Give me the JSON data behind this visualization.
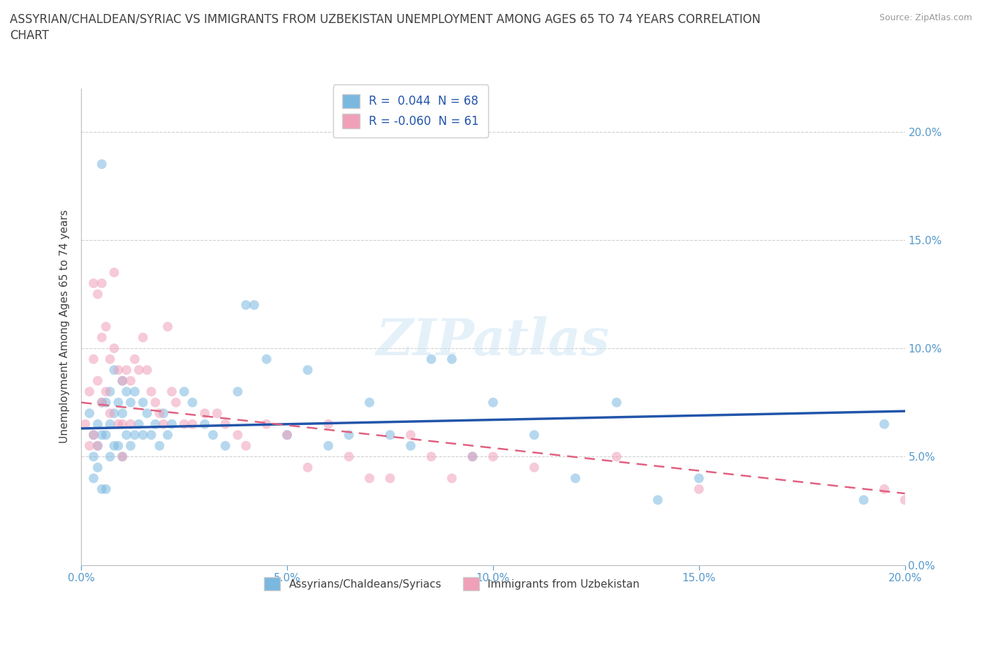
{
  "title": "ASSYRIAN/CHALDEAN/SYRIAC VS IMMIGRANTS FROM UZBEKISTAN UNEMPLOYMENT AMONG AGES 65 TO 74 YEARS CORRELATION\nCHART",
  "source_text": "Source: ZipAtlas.com",
  "ylabel": "Unemployment Among Ages 65 to 74 years",
  "watermark": "ZIPatlas",
  "xlim": [
    0.0,
    0.2
  ],
  "ylim": [
    0.0,
    0.22
  ],
  "legend_entries": [
    {
      "label": "R =  0.044  N = 68",
      "color": "#7eb8e8"
    },
    {
      "label": "R = -0.060  N = 61",
      "color": "#f4a0b0"
    }
  ],
  "bottom_legend": [
    {
      "label": "Assyrians/Chaldeans/Syriacs",
      "color": "#7eb8e8"
    },
    {
      "label": "Immigrants from Uzbekistan",
      "color": "#f4a0b0"
    }
  ],
  "blue_scatter_x": [
    0.002,
    0.003,
    0.003,
    0.003,
    0.004,
    0.004,
    0.004,
    0.005,
    0.005,
    0.005,
    0.005,
    0.006,
    0.006,
    0.006,
    0.007,
    0.007,
    0.007,
    0.008,
    0.008,
    0.008,
    0.009,
    0.009,
    0.01,
    0.01,
    0.01,
    0.011,
    0.011,
    0.012,
    0.012,
    0.013,
    0.013,
    0.014,
    0.015,
    0.015,
    0.016,
    0.017,
    0.018,
    0.019,
    0.02,
    0.021,
    0.022,
    0.025,
    0.027,
    0.03,
    0.032,
    0.035,
    0.038,
    0.04,
    0.042,
    0.045,
    0.05,
    0.055,
    0.06,
    0.065,
    0.07,
    0.075,
    0.08,
    0.085,
    0.09,
    0.095,
    0.1,
    0.11,
    0.12,
    0.13,
    0.14,
    0.15,
    0.19,
    0.195
  ],
  "blue_scatter_y": [
    0.07,
    0.06,
    0.05,
    0.04,
    0.065,
    0.055,
    0.045,
    0.185,
    0.075,
    0.06,
    0.035,
    0.075,
    0.06,
    0.035,
    0.08,
    0.065,
    0.05,
    0.09,
    0.07,
    0.055,
    0.075,
    0.055,
    0.085,
    0.07,
    0.05,
    0.08,
    0.06,
    0.075,
    0.055,
    0.08,
    0.06,
    0.065,
    0.075,
    0.06,
    0.07,
    0.06,
    0.065,
    0.055,
    0.07,
    0.06,
    0.065,
    0.08,
    0.075,
    0.065,
    0.06,
    0.055,
    0.08,
    0.12,
    0.12,
    0.095,
    0.06,
    0.09,
    0.055,
    0.06,
    0.075,
    0.06,
    0.055,
    0.095,
    0.095,
    0.05,
    0.075,
    0.06,
    0.04,
    0.075,
    0.03,
    0.04,
    0.03,
    0.065
  ],
  "pink_scatter_x": [
    0.001,
    0.002,
    0.002,
    0.003,
    0.003,
    0.003,
    0.004,
    0.004,
    0.004,
    0.005,
    0.005,
    0.005,
    0.006,
    0.006,
    0.007,
    0.007,
    0.008,
    0.008,
    0.009,
    0.009,
    0.01,
    0.01,
    0.01,
    0.011,
    0.012,
    0.012,
    0.013,
    0.014,
    0.015,
    0.016,
    0.017,
    0.018,
    0.019,
    0.02,
    0.021,
    0.022,
    0.023,
    0.025,
    0.027,
    0.03,
    0.033,
    0.035,
    0.038,
    0.04,
    0.045,
    0.05,
    0.055,
    0.06,
    0.065,
    0.07,
    0.075,
    0.08,
    0.085,
    0.09,
    0.095,
    0.1,
    0.11,
    0.13,
    0.15,
    0.195,
    0.2
  ],
  "pink_scatter_y": [
    0.065,
    0.08,
    0.055,
    0.13,
    0.095,
    0.06,
    0.125,
    0.085,
    0.055,
    0.13,
    0.105,
    0.075,
    0.11,
    0.08,
    0.095,
    0.07,
    0.135,
    0.1,
    0.09,
    0.065,
    0.085,
    0.065,
    0.05,
    0.09,
    0.085,
    0.065,
    0.095,
    0.09,
    0.105,
    0.09,
    0.08,
    0.075,
    0.07,
    0.065,
    0.11,
    0.08,
    0.075,
    0.065,
    0.065,
    0.07,
    0.07,
    0.065,
    0.06,
    0.055,
    0.065,
    0.06,
    0.045,
    0.065,
    0.05,
    0.04,
    0.04,
    0.06,
    0.05,
    0.04,
    0.05,
    0.05,
    0.045,
    0.05,
    0.035,
    0.035,
    0.03
  ],
  "blue_line_x": [
    0.0,
    0.2
  ],
  "blue_line_y": [
    0.063,
    0.071
  ],
  "pink_line_x": [
    0.0,
    0.2
  ],
  "pink_line_y": [
    0.075,
    0.033
  ],
  "grid_color": "#d0d0d0",
  "scatter_size": 100,
  "scatter_alpha": 0.55,
  "blue_color": "#7ab8e0",
  "pink_color": "#f0a0b8",
  "blue_line_color": "#2255aa",
  "pink_line_color": "#e06080",
  "title_color": "#404040",
  "tick_color": "#5599cc",
  "background_color": "#ffffff"
}
